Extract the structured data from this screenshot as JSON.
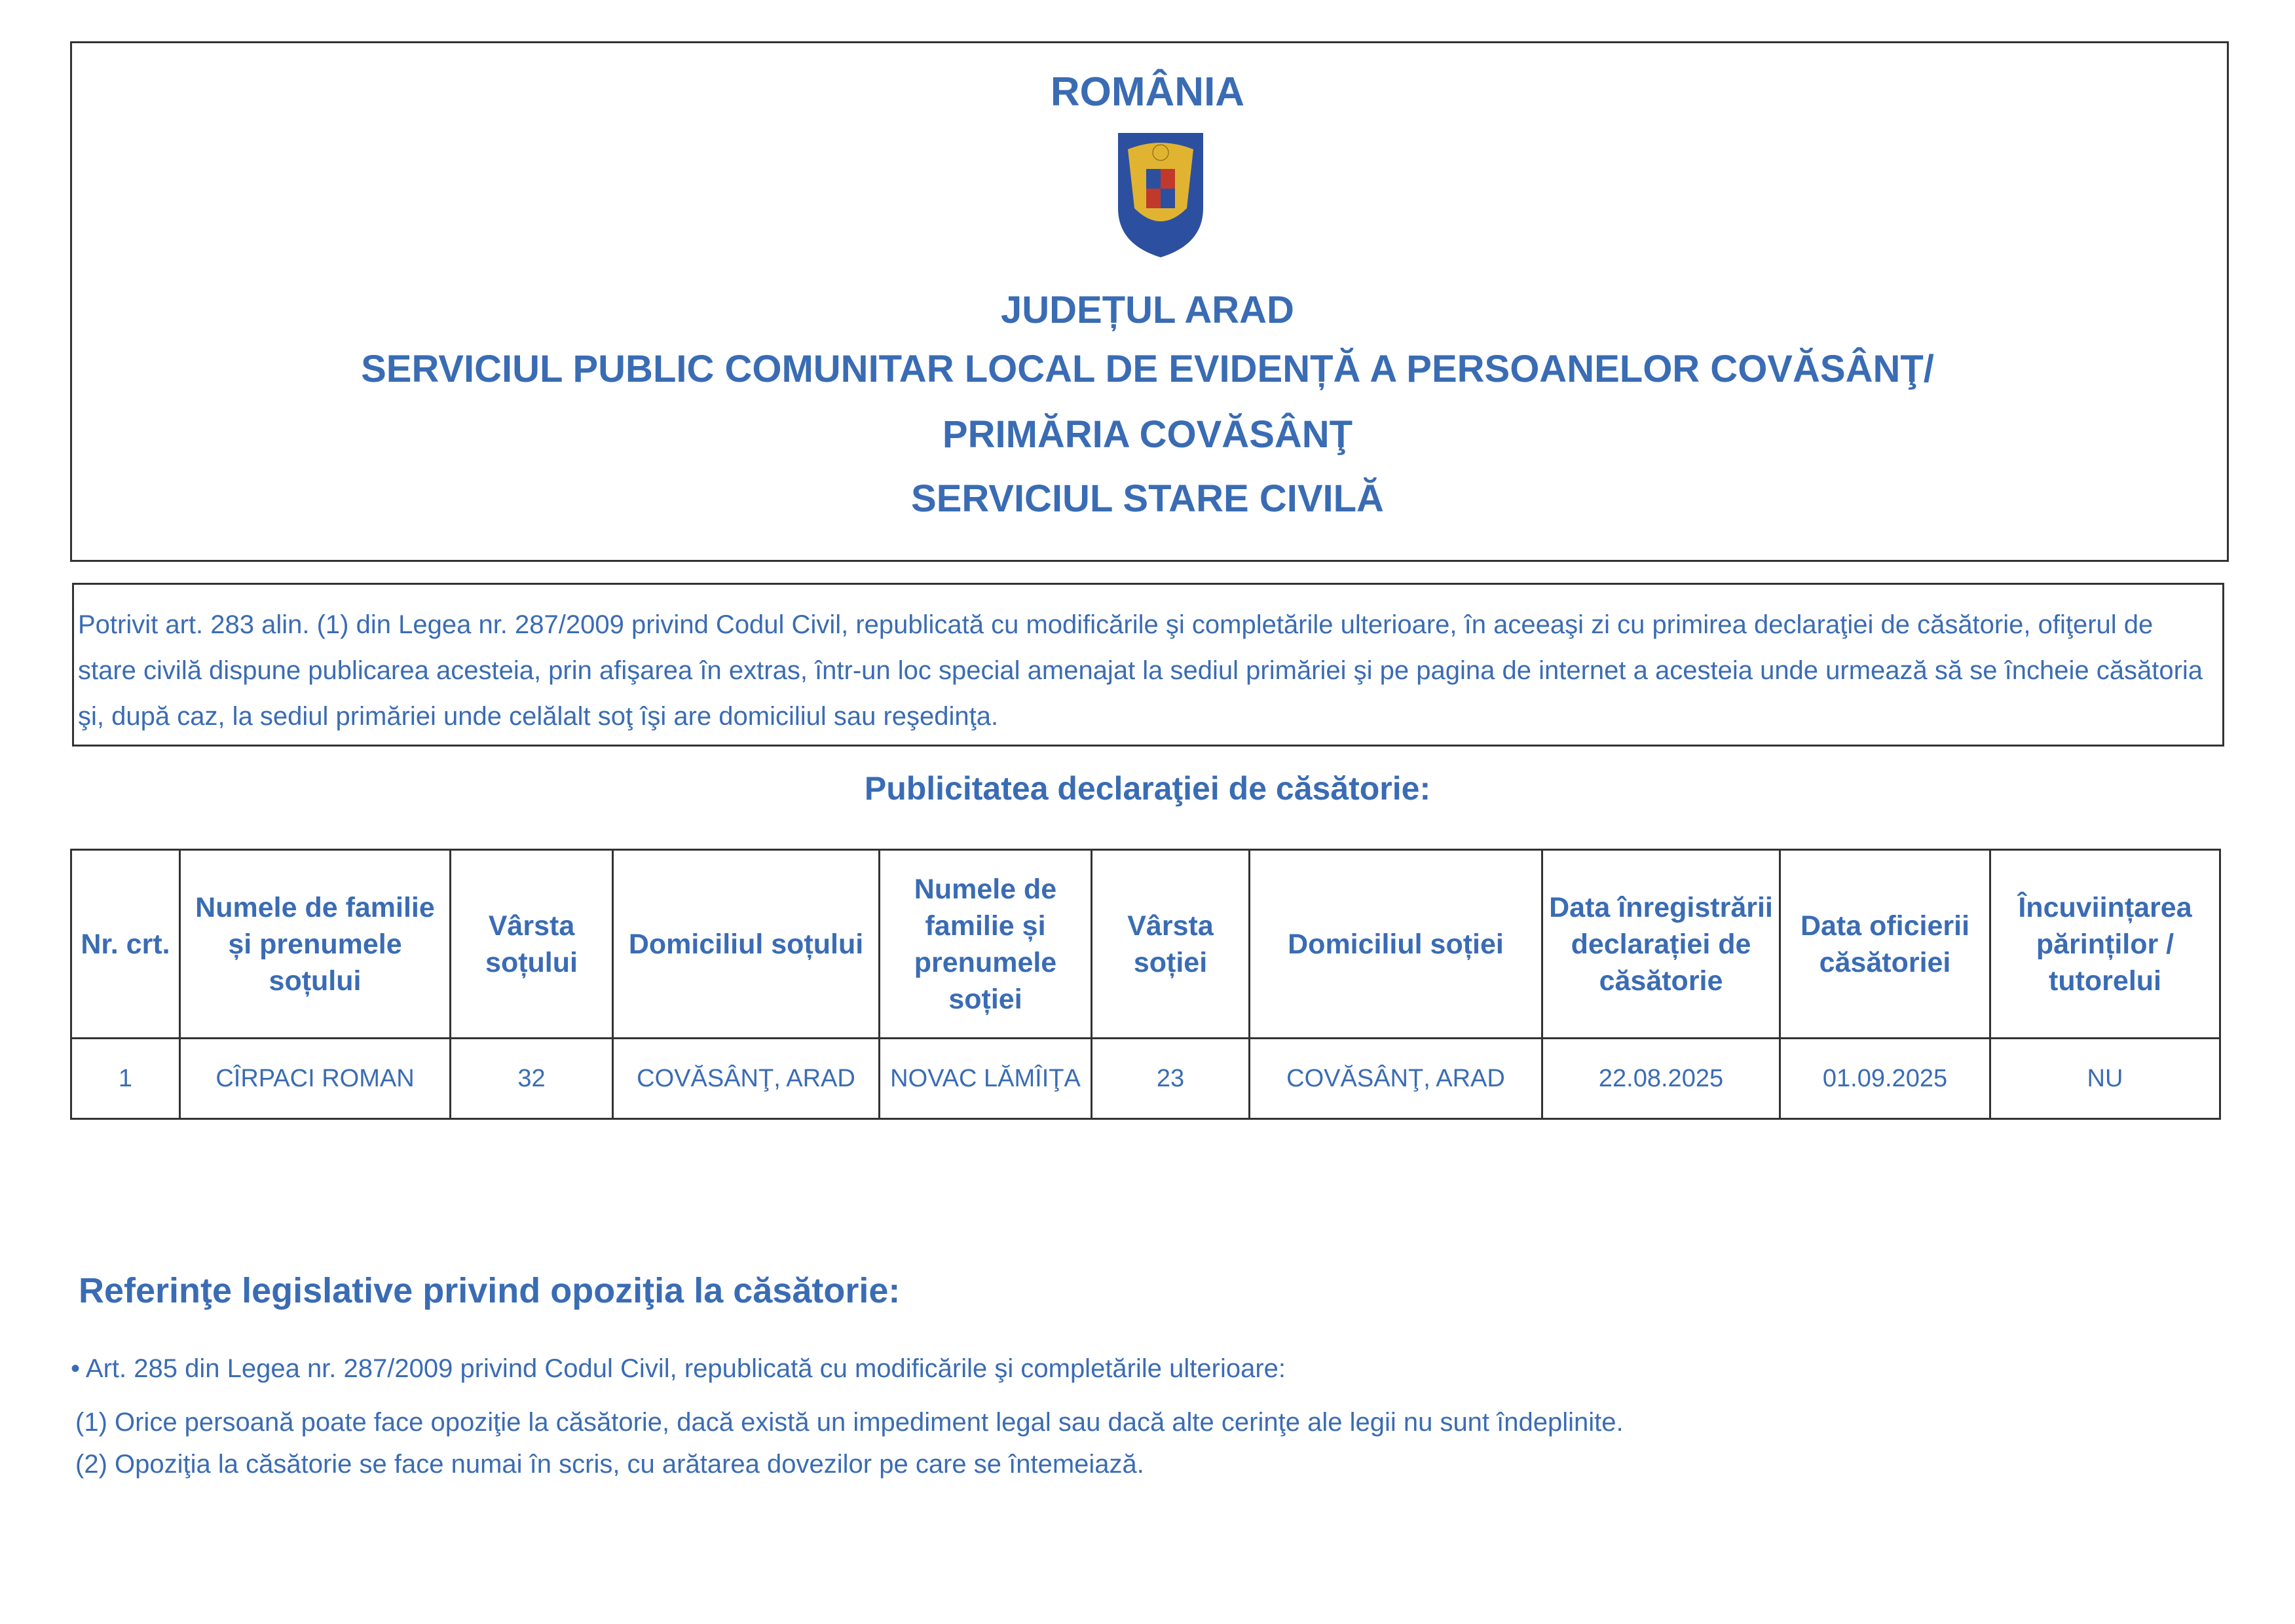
{
  "header": {
    "country": "ROMÂNIA",
    "crest": "romania-coat-of-arms",
    "lines": [
      "JUDEȚUL ARAD",
      "SERVICIUL PUBLIC COMUNITAR LOCAL DE EVIDENȚĂ A PERSOANELOR COVĂSÂNŢ/",
      "PRIMĂRIA COVĂSÂNŢ",
      "SERVICIUL STARE CIVILĂ"
    ]
  },
  "intro": "Potrivit art. 283 alin. (1) din Legea nr. 287/2009 privind Codul Civil, republicată cu modificările şi completările ulterioare, în aceeaşi zi cu primirea declaraţiei de căsătorie, ofiţerul de stare civilă dispune publicarea acesteia, prin afişarea în extras, într-un loc special amenajat la sediul primăriei şi pe pagina de internet a acesteia unde urmează să se încheie căsătoria şi, după caz, la sediul primăriei unde celălalt soţ îşi are domiciliul sau reşedinţa.",
  "section_title": "Publicitatea declaraţiei de căsătorie:",
  "table": {
    "headers": [
      "Nr. crt.",
      "Numele de familie și prenumele soțului",
      "Vârsta soțului",
      "Domiciliul soțului",
      "Numele de familie și prenumele soției",
      "Vârsta soției",
      "Domiciliul soției",
      "Data înregistrării declarației de căsătorie",
      "Data oficierii căsătoriei",
      "Încuviințarea părinților / tutorelui"
    ],
    "rows": [
      [
        "1",
        "CÎRPACI ROMAN",
        "32",
        "COVĂSÂNŢ, ARAD",
        "NOVAC LĂMÎIŢA",
        "23",
        "COVĂSÂNŢ, ARAD",
        "22.08.2025",
        "01.09.2025",
        "NU"
      ]
    ]
  },
  "references": {
    "title": "Referinţe legislative privind opoziţia la căsătorie:",
    "items": [
      "• Art. 285 din Legea nr. 287/2009 privind Codul Civil, republicată cu modificările şi completările ulterioare:",
      "(1) Orice persoană poate face opoziţie la căsătorie, dacă există un impediment legal sau dacă alte cerinţe ale legii nu sunt îndeplinite.",
      "(2) Opoziţia la căsătorie se face numai în scris, cu arătarea dovezilor pe care se întemeiază."
    ]
  },
  "colors": {
    "text": "#3a6cb4",
    "border": "#333333"
  }
}
